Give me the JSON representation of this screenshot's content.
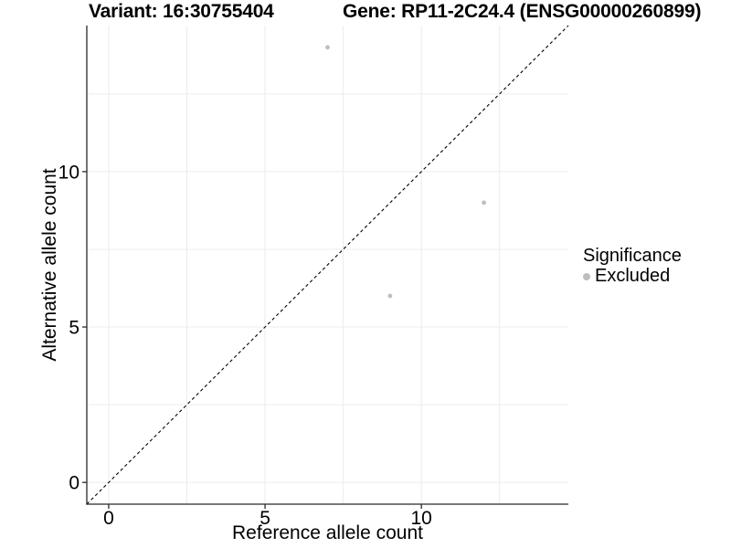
{
  "header": {
    "variant_label": "Variant: 16:30755404",
    "gene_label": "Gene: RP11-2C24.4 (ENSG00000260899)"
  },
  "legend": {
    "title": "Significance",
    "items": [
      {
        "label": "Excluded",
        "color": "#bebebe",
        "marker": "circle"
      }
    ]
  },
  "chart_data": {
    "type": "scatter",
    "title": "Variant: 16:30755404    Gene: RP11-2C24.4 (ENSG00000260899)",
    "xlabel": "Reference allele count",
    "ylabel": "Alternative allele count",
    "xlim": [
      -0.7,
      14.7
    ],
    "ylim": [
      -0.7,
      14.7
    ],
    "xticks": [
      0,
      5,
      10
    ],
    "yticks": [
      0,
      5,
      10
    ],
    "minor_xticks": [
      2.5,
      7.5,
      12.5
    ],
    "minor_yticks": [
      2.5,
      7.5,
      12.5
    ],
    "grid": true,
    "legend_position": "right",
    "series": [
      {
        "name": "Excluded",
        "color": "#bebebe",
        "points": [
          {
            "x": 7,
            "y": 14
          },
          {
            "x": 12,
            "y": 9
          },
          {
            "x": 9,
            "y": 6
          }
        ]
      }
    ],
    "reference_line": {
      "type": "identity y=x",
      "style": "dashed",
      "color": "#000000"
    },
    "colors": {
      "grid": "#ececec",
      "axis": "#2a2a2a",
      "text": "#000000",
      "background": "#ffffff"
    }
  }
}
